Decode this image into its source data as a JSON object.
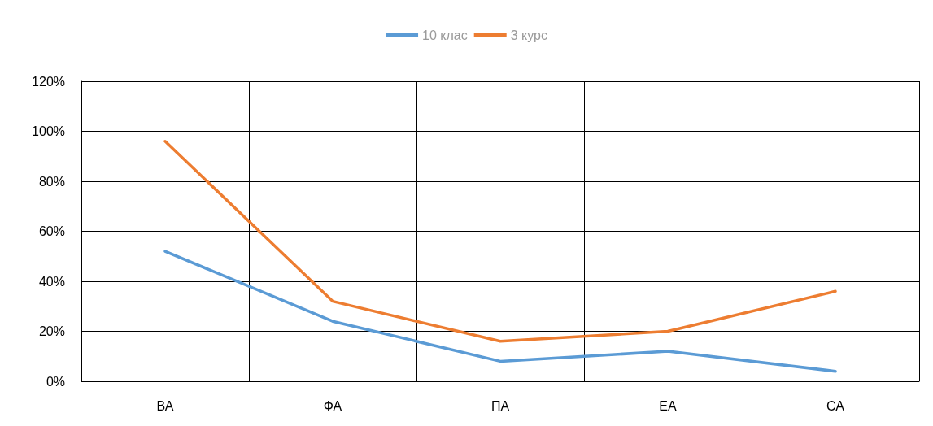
{
  "chart_data": {
    "type": "line",
    "categories": [
      "ВА",
      "ФА",
      "ПА",
      "ЕА",
      "СА"
    ],
    "series": [
      {
        "name": "10 клас",
        "color": "#5b9bd5",
        "values": [
          52,
          24,
          8,
          12,
          4
        ]
      },
      {
        "name": "3 курс",
        "color": "#ed7d31",
        "values": [
          96,
          32,
          16,
          20,
          36
        ]
      }
    ],
    "ylim": [
      0,
      120
    ],
    "yticks": [
      {
        "value": 0,
        "label": "0%"
      },
      {
        "value": 20,
        "label": "20%"
      },
      {
        "value": 40,
        "label": "40%"
      },
      {
        "value": 60,
        "label": "60%"
      },
      {
        "value": 80,
        "label": "80%"
      },
      {
        "value": 100,
        "label": "100%"
      },
      {
        "value": 120,
        "label": "120%"
      }
    ],
    "grid": true,
    "legend": "top",
    "marker": "none",
    "line_style": "solid"
  }
}
